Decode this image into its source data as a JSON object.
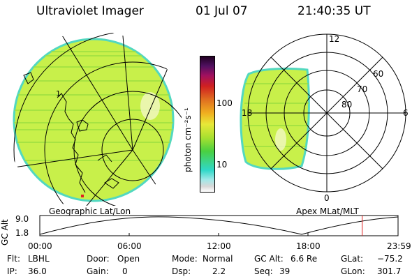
{
  "header": {
    "instrument": "Ultraviolet Imager",
    "date": "01 Jul 07",
    "time": "21:40:35 UT"
  },
  "colors": {
    "image_fill": "#c8f04a",
    "image_edge": "#52d8c0",
    "orbit_marker": "#e02020"
  },
  "maps": {
    "left_caption": "Geographic Lat/Lon",
    "left_marker": "1",
    "right_caption": "Apex MLat/MLT"
  },
  "polar": {
    "mlt_labels": {
      "top": "12",
      "right": "6",
      "bottom": "0",
      "left": "18"
    },
    "lat_labels": [
      "60",
      "70",
      "80"
    ]
  },
  "colorbar": {
    "unit_label": "photon cm⁻²s⁻¹",
    "ticks": [
      "100",
      "10"
    ]
  },
  "orbit_plot": {
    "ylabel": "GC Alt",
    "ymax": "9.0",
    "ymin": "1.8",
    "xticks": [
      "00:00",
      "06:00",
      "12:00",
      "18:00",
      "23:59"
    ],
    "current_time_fraction": 0.9
  },
  "status": {
    "filter": {
      "label": "Flt:",
      "value": "LBHL"
    },
    "ip": {
      "label": "IP:",
      "value": "36.0"
    },
    "door": {
      "label": "Door:",
      "value": "Open"
    },
    "gain": {
      "label": "Gain:",
      "value": "0"
    },
    "mode": {
      "label": "Mode:",
      "value": "Normal"
    },
    "dsp": {
      "label": "Dsp:",
      "value": "2.2"
    },
    "gc_alt": {
      "label": "GC Alt:",
      "value": "6.6 Re"
    },
    "seq": {
      "label": "Seq:",
      "value": "39"
    },
    "glat": {
      "label": "GLat:",
      "value": "−75.2"
    },
    "glon": {
      "label": "GLon:",
      "value": "301.7"
    }
  }
}
